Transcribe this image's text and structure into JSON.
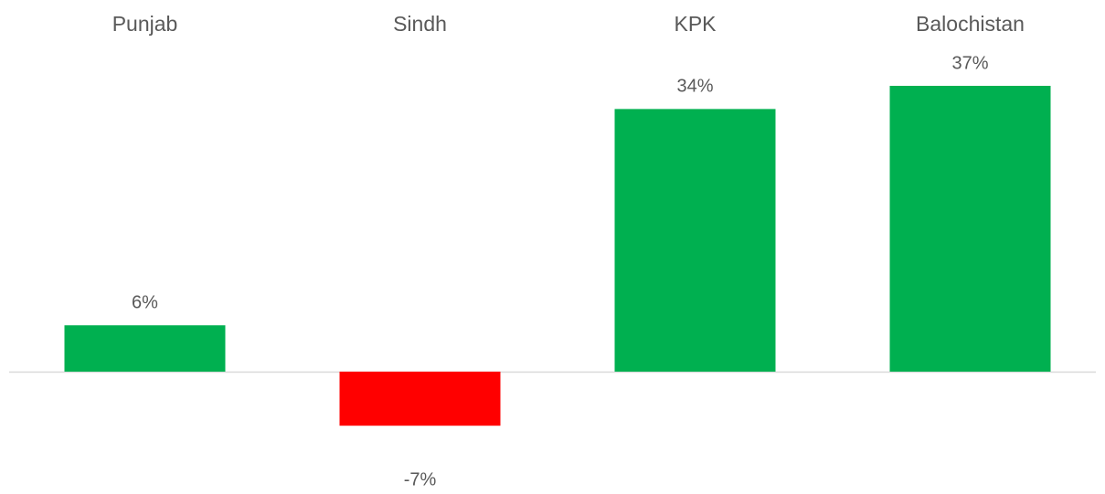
{
  "chart_data": {
    "type": "bar",
    "categories": [
      "Punjab",
      "Sindh",
      "KPK",
      "Balochistan"
    ],
    "values": [
      6,
      -7,
      34,
      37
    ],
    "value_labels": [
      "6%",
      "-7%",
      "34%",
      "37%"
    ],
    "colors": [
      "#00b050",
      "#ff0000",
      "#00b050",
      "#00b050"
    ]
  }
}
